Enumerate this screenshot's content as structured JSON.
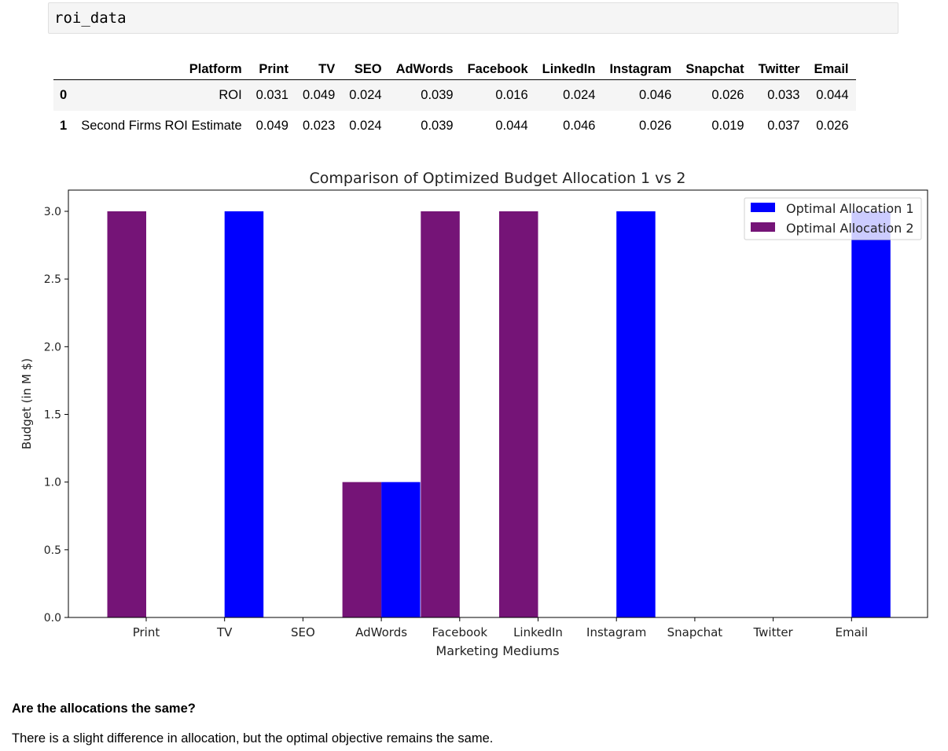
{
  "code_cell": {
    "text": "roi_data"
  },
  "table": {
    "columns": [
      "Platform",
      "Print",
      "TV",
      "SEO",
      "AdWords",
      "Facebook",
      "LinkedIn",
      "Instagram",
      "Snapchat",
      "Twitter",
      "Email"
    ],
    "rows": [
      {
        "index": "0",
        "cells": [
          "ROI",
          "0.031",
          "0.049",
          "0.024",
          "0.039",
          "0.016",
          "0.024",
          "0.046",
          "0.026",
          "0.033",
          "0.044"
        ]
      },
      {
        "index": "1",
        "cells": [
          "Second Firms ROI Estimate",
          "0.049",
          "0.023",
          "0.024",
          "0.039",
          "0.044",
          "0.046",
          "0.026",
          "0.019",
          "0.037",
          "0.026"
        ]
      }
    ]
  },
  "chart_data": {
    "type": "bar",
    "title": "Comparison of Optimized Budget Allocation 1 vs 2",
    "xlabel": "Marketing Mediums",
    "ylabel": "Budget (in M $)",
    "categories": [
      "Print",
      "TV",
      "SEO",
      "AdWords",
      "Facebook",
      "LinkedIn",
      "Instagram",
      "Snapchat",
      "Twitter",
      "Email"
    ],
    "series": [
      {
        "name": "Optimal Allocation 1",
        "color": "#0000ff",
        "values": [
          0,
          3,
          0,
          1,
          0,
          0,
          3,
          0,
          0,
          3
        ]
      },
      {
        "name": "Optimal Allocation 2",
        "color": "#751477",
        "values": [
          3,
          0,
          0,
          1,
          3,
          3,
          0,
          0,
          0,
          0
        ]
      }
    ],
    "ylim": [
      0,
      3.15
    ],
    "yticks": [
      "0.0",
      "0.5",
      "1.0",
      "1.5",
      "2.0",
      "2.5",
      "3.0"
    ],
    "ytick_values": [
      0,
      0.5,
      1,
      1.5,
      2,
      2.5,
      3
    ],
    "legend_position": "top-right",
    "grid": false
  },
  "question": {
    "heading": "Are the allocations the same?"
  },
  "answer": {
    "text": "There is a slight difference in allocation, but the optimal objective remains the same."
  }
}
